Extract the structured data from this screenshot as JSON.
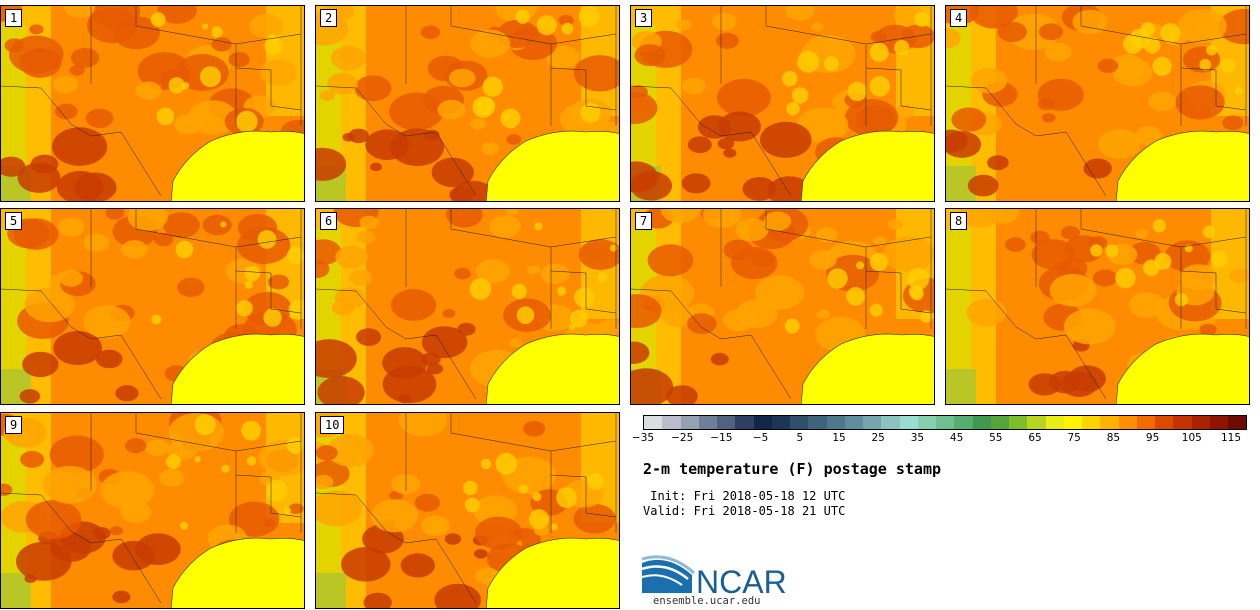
{
  "panels": [
    {
      "label": "1"
    },
    {
      "label": "2"
    },
    {
      "label": "3"
    },
    {
      "label": "4"
    },
    {
      "label": "5"
    },
    {
      "label": "6"
    },
    {
      "label": "7"
    },
    {
      "label": "8"
    },
    {
      "label": "9"
    },
    {
      "label": "10"
    }
  ],
  "colorbar": {
    "colors": [
      "#dcdce4",
      "#b8bccb",
      "#95a0b3",
      "#6f7f97",
      "#4f627f",
      "#2f3f63",
      "#142647",
      "#1d3656",
      "#2f4f6c",
      "#40637d",
      "#50788d",
      "#5f8d9c",
      "#76a6ad",
      "#8cc2c0",
      "#99dcd0",
      "#86d0b0",
      "#6fbf91",
      "#55ad6f",
      "#3f9a4f",
      "#55a63a",
      "#7fbd2a",
      "#b8d61f",
      "#e8ee14",
      "#fff400",
      "#ffd400",
      "#ffb300",
      "#ff8f00",
      "#f26a00",
      "#dc4a00",
      "#c63200",
      "#aa2200",
      "#8e1400",
      "#6e0a00"
    ],
    "ticks": [
      "−35",
      "−25",
      "−15",
      "−5",
      "5",
      "15",
      "25",
      "35",
      "45",
      "55",
      "65",
      "75",
      "85",
      "95",
      "105",
      "115"
    ]
  },
  "title": "2-m temperature (F) postage stamp",
  "init_line": " Init: Fri 2018-05-18 12 UTC",
  "valid_line": "Valid: Fri 2018-05-18 21 UTC",
  "logo_text": "NCAR",
  "logo_url": "ensemble.ucar.edu",
  "map_colors": {
    "gulf": "#ffff00",
    "base": "#ff8c00",
    "hot": "#e85a00",
    "hotter": "#c83c00",
    "warm": "#ffa500",
    "mild": "#ffd000",
    "cool": "#cce800",
    "green": "#8ccc40"
  }
}
